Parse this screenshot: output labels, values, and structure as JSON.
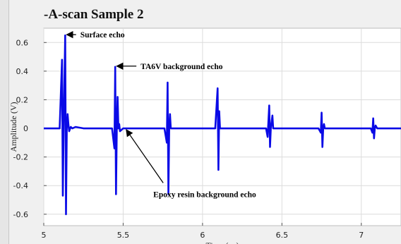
{
  "chart_data": {
    "type": "line",
    "title": "-A-scan Sample 2",
    "xlabel": "Time (μs)",
    "ylabel": "Amplitude (V)",
    "xlim": [
      5.0,
      7.25
    ],
    "ylim": [
      -0.68,
      0.7
    ],
    "grid": true,
    "colors": {
      "series": "#0a0ae6",
      "background": "#f0f0f0",
      "plot_bg": "#ffffff",
      "grid": "#dcdcdc"
    },
    "x_ticks": [
      5,
      5.5,
      6,
      6.5,
      7
    ],
    "x_tick_labels": [
      "5",
      "5.5",
      "6",
      "6.5",
      "7"
    ],
    "y_ticks": [
      0.6,
      0.4,
      0.2,
      0,
      -0.2,
      -0.4,
      -0.6
    ],
    "y_tick_labels": [
      "0.6",
      "0.4",
      "0.2",
      "0",
      "-0.2",
      "-0.4",
      "-0.6"
    ],
    "series": [
      {
        "x": [
          5.0,
          5.05,
          5.1,
          5.115,
          5.12,
          5.125,
          5.135,
          5.14,
          5.145,
          5.15,
          5.155,
          5.16,
          5.17,
          5.18,
          5.2,
          5.25,
          5.3,
          5.4,
          5.43,
          5.445,
          5.45,
          5.455,
          5.46,
          5.465,
          5.47,
          5.475,
          5.48,
          5.5,
          5.6,
          5.7,
          5.76,
          5.775,
          5.78,
          5.785,
          5.79,
          5.795,
          5.8,
          5.81,
          5.9,
          6.0,
          6.08,
          6.095,
          6.1,
          6.105,
          6.11,
          6.115,
          6.12,
          6.13,
          6.25,
          6.4,
          6.41,
          6.42,
          6.425,
          6.43,
          6.44,
          6.445,
          6.45,
          6.6,
          6.73,
          6.745,
          6.75,
          6.755,
          6.76,
          6.765,
          6.77,
          6.9,
          7.06,
          7.07,
          7.075,
          7.08,
          7.085,
          7.09,
          7.1,
          7.25
        ],
        "y": [
          0.0,
          0.0,
          0.0,
          0.48,
          -0.47,
          0.0,
          0.65,
          -0.6,
          0.0,
          0.1,
          0.03,
          -0.02,
          0.01,
          0.0,
          0.01,
          0.0,
          0.0,
          0.0,
          0.0,
          -0.14,
          0.43,
          -0.46,
          0.0,
          0.22,
          0.0,
          0.03,
          -0.02,
          0.0,
          0.0,
          0.0,
          0.0,
          -0.1,
          0.32,
          -0.46,
          0.0,
          0.1,
          0.0,
          0.0,
          0.0,
          0.0,
          0.0,
          0.28,
          -0.29,
          0.12,
          0.0,
          0.0,
          0.0,
          0.0,
          0.0,
          0.0,
          -0.06,
          0.16,
          -0.13,
          0.0,
          0.09,
          0.0,
          0.0,
          0.0,
          0.0,
          -0.03,
          0.11,
          -0.13,
          0.0,
          0.03,
          0.0,
          0.0,
          0.0,
          -0.03,
          0.07,
          -0.07,
          0.0,
          0.02,
          0.0,
          0.0
        ]
      }
    ],
    "annotations": [
      {
        "text": "Surface echo",
        "x": 5.23,
        "y": 0.655,
        "arrow_to": [
          5.145,
          0.655
        ]
      },
      {
        "text": "TA6V background echo",
        "x": 5.61,
        "y": 0.435,
        "arrow_to": [
          5.46,
          0.435
        ]
      },
      {
        "text": "Epoxy resin background echo",
        "x": 5.69,
        "y": -0.46,
        "arrow_to": [
          5.52,
          -0.01
        ]
      }
    ]
  }
}
